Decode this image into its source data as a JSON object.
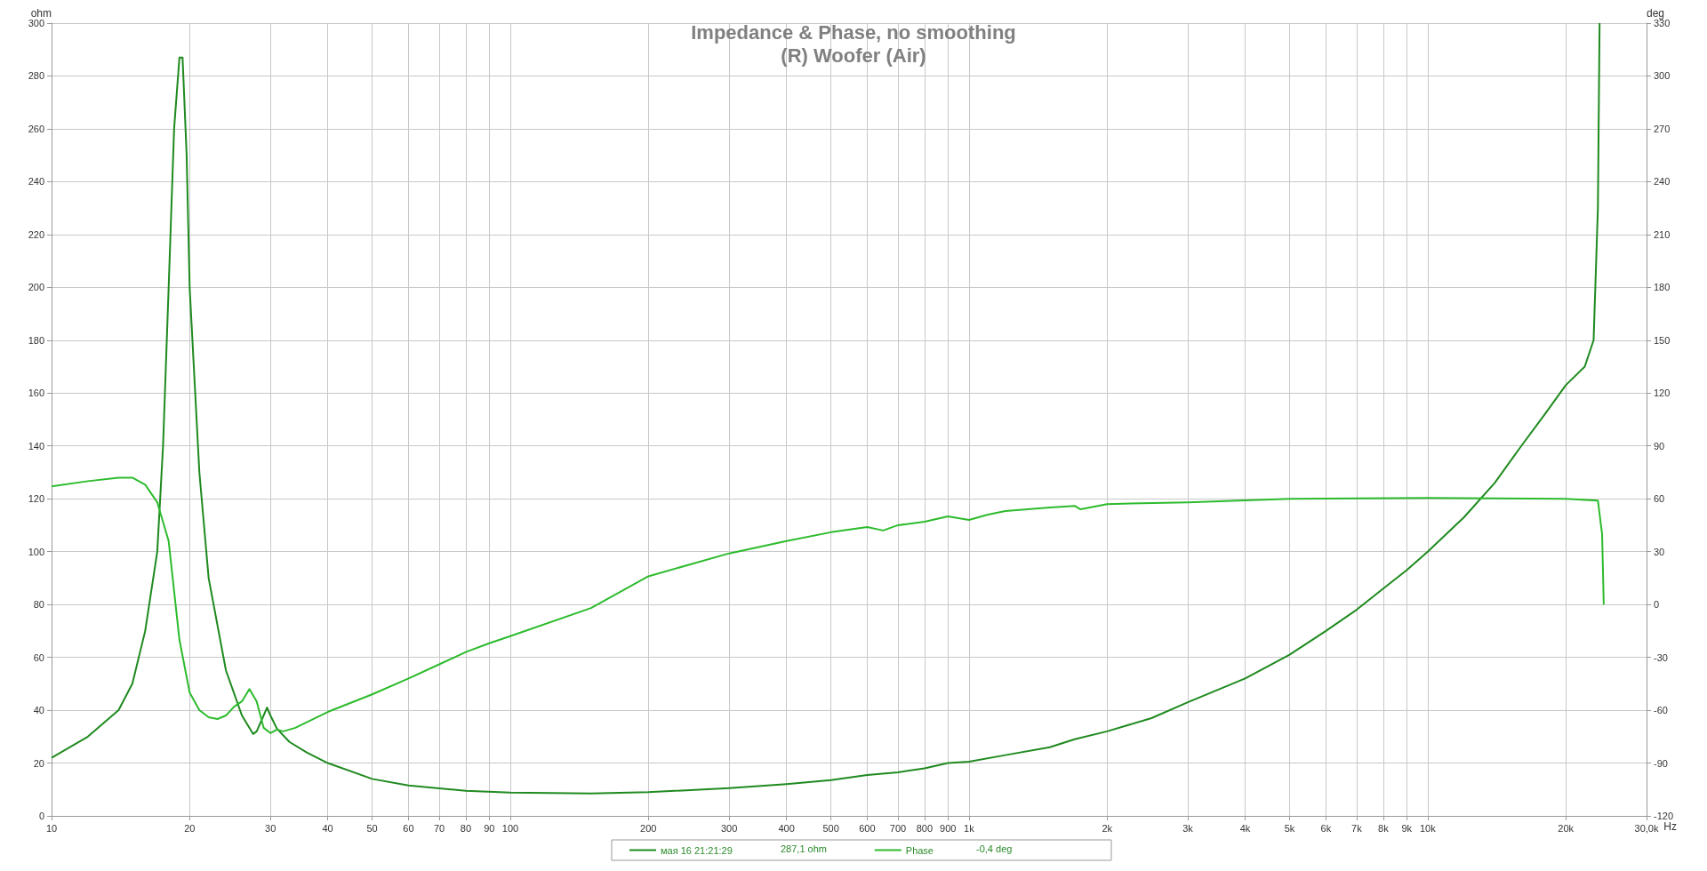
{
  "chart_data": {
    "type": "line",
    "title": "Impedance & Phase, no smoothing",
    "subtitle": "(R) Woofer (Air)",
    "xlabel": "Hz",
    "ylabel": "ohm",
    "y2label": "deg",
    "log": "x",
    "grid": true,
    "legend": "bottom",
    "marker": "none",
    "line_style": "solid",
    "xlim": [
      10,
      30000
    ],
    "xticks": [
      10,
      20,
      30,
      40,
      50,
      60,
      70,
      80,
      90,
      100,
      200,
      300,
      400,
      500,
      600,
      700,
      800,
      900,
      {
        "value": 1000,
        "label": "1k"
      },
      {
        "value": 2000,
        "label": "2k"
      },
      {
        "value": 3000,
        "label": "3k"
      },
      {
        "value": 4000,
        "label": "4k"
      },
      {
        "value": 5000,
        "label": "5k"
      },
      {
        "value": 6000,
        "label": "6k"
      },
      {
        "value": 7000,
        "label": "7k"
      },
      {
        "value": 8000,
        "label": "8k"
      },
      {
        "value": 9000,
        "label": "9k"
      },
      {
        "value": 10000,
        "label": "10k"
      },
      {
        "value": 20000,
        "label": "20k"
      },
      {
        "value": 30000,
        "label": "30,0k"
      }
    ],
    "ylim": [
      0,
      300
    ],
    "yticks": [
      0,
      20,
      40,
      60,
      80,
      100,
      120,
      140,
      160,
      180,
      200,
      220,
      240,
      260,
      280,
      300
    ],
    "y2lim": [
      -120,
      330
    ],
    "y2ticks": [
      -120,
      -90,
      -60,
      -30,
      0,
      30,
      60,
      90,
      120,
      150,
      180,
      210,
      240,
      270,
      300,
      330
    ],
    "annotations": [
      "287,1 ohm",
      "-0,4 deg"
    ],
    "series": [
      {
        "name": "мая 16 21:21:29",
        "color": "#1f8a1f",
        "x": [
          10,
          12,
          14,
          15,
          16,
          17,
          17.5,
          18,
          18.5,
          19,
          19.3,
          19.7,
          20,
          21,
          22,
          24,
          26,
          27.5,
          28,
          29,
          29.5,
          30,
          31,
          33,
          36,
          40,
          50,
          60,
          80,
          100,
          150,
          200,
          300,
          400,
          500,
          600,
          700,
          800,
          900,
          1000,
          1200,
          1500,
          1700,
          2000,
          2500,
          3000,
          4000,
          5000,
          6000,
          7000,
          8000,
          9000,
          10000,
          12000,
          14000,
          16000,
          18000,
          20000,
          22000,
          23000,
          23500,
          23700
        ],
        "values": [
          22,
          30,
          40,
          50,
          70,
          100,
          140,
          200,
          260,
          287,
          287,
          250,
          200,
          130,
          90,
          55,
          38,
          31,
          32,
          38,
          41,
          38,
          33,
          28,
          24,
          20,
          14,
          11.5,
          9.5,
          8.8,
          8.5,
          9,
          10.5,
          12,
          13.5,
          15.5,
          16.5,
          18,
          20,
          20.5,
          23,
          26,
          29,
          32,
          37,
          43,
          52,
          61,
          70,
          78,
          86,
          93,
          100,
          113,
          126,
          140,
          152,
          163,
          170,
          180,
          230,
          300
        ]
      },
      {
        "name": "Phase",
        "color": "#2dbb2d",
        "axis": "y2",
        "x": [
          10,
          12,
          14,
          15,
          16,
          17,
          18,
          19,
          20,
          21,
          22,
          23,
          24,
          25,
          26,
          27,
          28,
          29,
          30,
          31,
          32,
          34,
          40,
          50,
          60,
          70,
          80,
          90,
          100,
          150,
          200,
          300,
          400,
          500,
          600,
          650,
          700,
          800,
          900,
          1000,
          1100,
          1200,
          1500,
          1700,
          1750,
          2000,
          3000,
          5000,
          10000,
          20000,
          23500,
          24000,
          24200
        ],
        "values": [
          67,
          70,
          72,
          72,
          68,
          58,
          36,
          -20,
          -50,
          -60,
          -64,
          -65,
          -63,
          -58,
          -55,
          -48,
          -55,
          -70,
          -73,
          -71,
          -72,
          -70,
          -61,
          -51,
          -42,
          -34,
          -27,
          -22,
          -18,
          -2,
          16,
          29,
          36,
          41,
          44,
          42,
          45,
          47,
          50,
          48,
          51,
          53,
          55,
          56,
          54,
          57,
          58,
          60,
          60.5,
          60,
          59,
          40,
          0
        ]
      }
    ]
  }
}
